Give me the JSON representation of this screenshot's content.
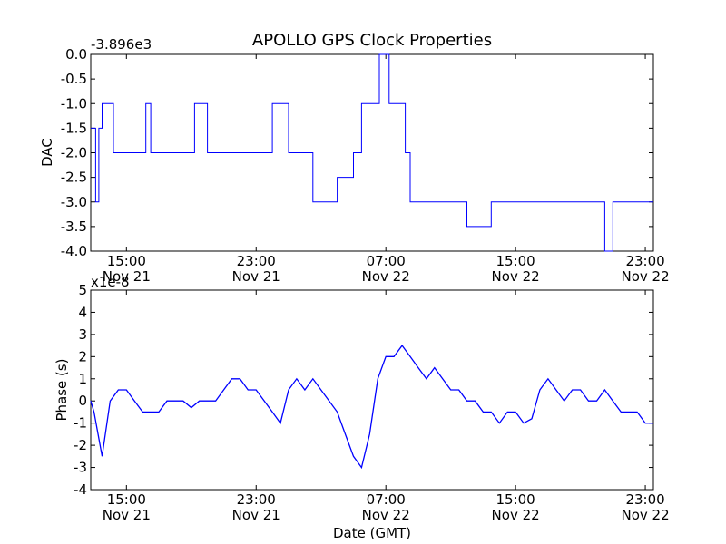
{
  "chart_data": {
    "type": "line",
    "title": "APOLLO GPS Clock Properties",
    "xlabel": "Date (GMT)",
    "line_color": "#0000ff",
    "x_ticks": [
      {
        "hour": 15,
        "line1": "15:00",
        "line2": "Nov 21"
      },
      {
        "hour": 23,
        "line1": "23:00",
        "line2": "Nov 21"
      },
      {
        "hour": 31,
        "line1": "07:00",
        "line2": "Nov 22"
      },
      {
        "hour": 39,
        "line1": "15:00",
        "line2": "Nov 22"
      },
      {
        "hour": 47,
        "line1": "23:00",
        "line2": "Nov 22"
      }
    ],
    "xlim_hours": [
      12.8,
      47.5
    ],
    "panels": [
      {
        "name": "dac",
        "ylabel": "DAC",
        "offset_label": "-3.896e3",
        "ylim": [
          -4.0,
          0.0
        ],
        "yticks": [
          "0.0",
          "-0.5",
          "-1.0",
          "-1.5",
          "-2.0",
          "-2.5",
          "-3.0",
          "-3.5",
          "-4.0"
        ],
        "series": [
          {
            "name": "DAC",
            "style": "step",
            "x_hours": [
              12.8,
              13.1,
              13.3,
              13.5,
              14.2,
              15.5,
              16.2,
              16.5,
              18.5,
              19.2,
              20.0,
              21.6,
              22.0,
              24.0,
              25.0,
              26.5,
              27.3,
              28.0,
              29.0,
              29.5,
              30.0,
              30.6,
              31.2,
              32.2,
              32.5,
              33.0,
              36.0,
              37.5,
              38.0,
              42.0,
              44.5,
              45.0,
              47.5
            ],
            "values": [
              -1.5,
              -3.0,
              -1.5,
              -1.0,
              -2.0,
              -2.0,
              -1.0,
              -2.0,
              -2.0,
              -1.0,
              -2.0,
              -2.0,
              -2.0,
              -1.0,
              -2.0,
              -3.0,
              -3.0,
              -2.5,
              -2.0,
              -1.0,
              -1.0,
              0.0,
              -1.0,
              -2.0,
              -3.0,
              -3.0,
              -3.5,
              -3.0,
              -3.0,
              -3.0,
              -4.0,
              -3.0,
              -3.0
            ]
          }
        ]
      },
      {
        "name": "phase",
        "ylabel": "Phase (s)",
        "offset_label": "x1e-8",
        "ylim": [
          -4,
          5
        ],
        "yticks": [
          "5",
          "4",
          "3",
          "2",
          "1",
          "0",
          "-1",
          "-2",
          "-3",
          "-4"
        ],
        "series": [
          {
            "name": "Phase",
            "style": "line",
            "x_hours": [
              12.8,
              13.0,
              13.5,
              14.0,
              14.5,
              15.0,
              15.5,
              16.0,
              16.5,
              17.0,
              17.5,
              18.0,
              18.5,
              19.0,
              19.5,
              20.0,
              20.5,
              21.0,
              21.5,
              22.0,
              22.5,
              23.0,
              23.5,
              24.0,
              24.5,
              25.0,
              25.5,
              26.0,
              26.5,
              27.0,
              27.5,
              28.0,
              28.5,
              29.0,
              29.5,
              30.0,
              30.5,
              31.0,
              31.5,
              32.0,
              32.5,
              33.0,
              33.5,
              34.0,
              34.5,
              35.0,
              35.5,
              36.0,
              36.5,
              37.0,
              37.5,
              38.0,
              38.5,
              39.0,
              39.5,
              40.0,
              40.5,
              41.0,
              41.5,
              42.0,
              42.5,
              43.0,
              43.5,
              44.0,
              44.5,
              45.0,
              45.5,
              46.0,
              46.5,
              47.0,
              47.5
            ],
            "values": [
              0.0,
              -0.5,
              -2.5,
              0.0,
              0.5,
              0.5,
              0.0,
              -0.5,
              -0.5,
              -0.5,
              0.0,
              0.0,
              0.0,
              -0.3,
              0.0,
              0.0,
              0.0,
              0.5,
              1.0,
              1.0,
              0.5,
              0.5,
              0.0,
              -0.5,
              -1.0,
              0.5,
              1.0,
              0.5,
              1.0,
              0.5,
              0.0,
              -0.5,
              -1.5,
              -2.5,
              -3.0,
              -1.5,
              1.0,
              2.0,
              2.0,
              2.5,
              2.0,
              1.5,
              1.0,
              1.5,
              1.0,
              0.5,
              0.5,
              0.0,
              0.0,
              -0.5,
              -0.5,
              -1.0,
              -0.5,
              -0.5,
              -1.0,
              -0.8,
              0.5,
              1.0,
              0.5,
              0.0,
              0.5,
              0.5,
              0.0,
              0.0,
              0.5,
              0.0,
              -0.5,
              -0.5,
              -0.5,
              -1.0,
              -1.0
            ]
          }
        ]
      }
    ]
  }
}
